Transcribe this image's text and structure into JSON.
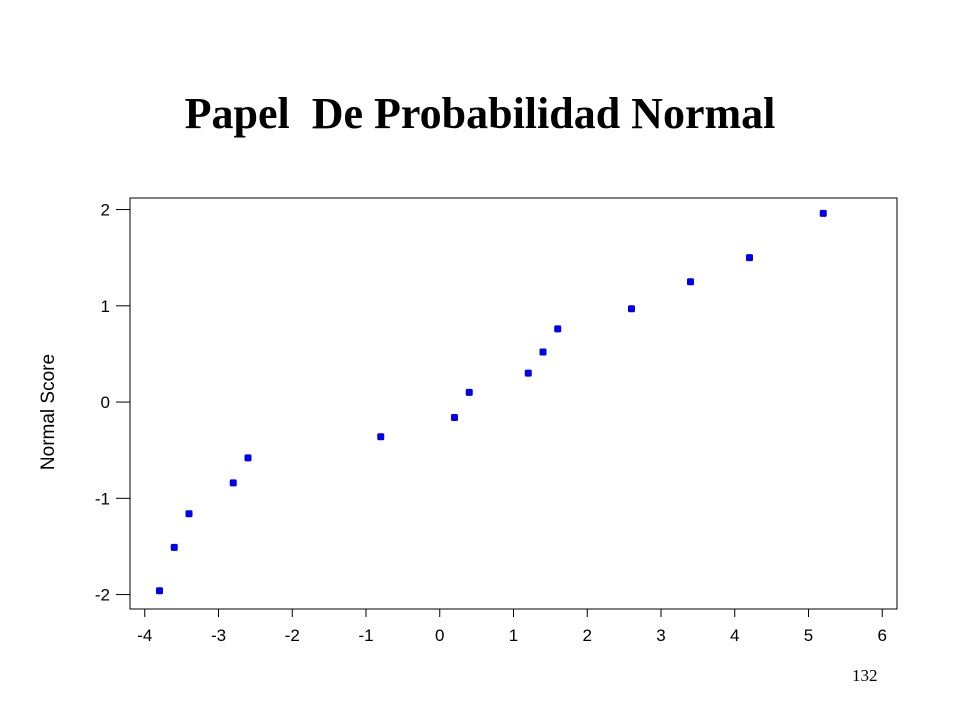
{
  "slide": {
    "title": "Papel  De Probabilidad Normal",
    "page_number": "132"
  },
  "chart_data": {
    "type": "scatter",
    "title": "",
    "xlabel": "",
    "ylabel": "Normal Score",
    "xlim": [
      -4.2,
      6.2
    ],
    "ylim": [
      -2.15,
      2.12
    ],
    "x_ticks": [
      -4,
      -3,
      -2,
      -1,
      0,
      1,
      2,
      3,
      4,
      5,
      6
    ],
    "y_ticks": [
      -2,
      -1,
      0,
      1,
      2
    ],
    "grid": false,
    "marker_color": "#0000ee",
    "points": [
      {
        "x": -3.8,
        "y": -1.96
      },
      {
        "x": -3.6,
        "y": -1.51
      },
      {
        "x": -3.4,
        "y": -1.16
      },
      {
        "x": -2.8,
        "y": -0.84
      },
      {
        "x": -2.6,
        "y": -0.58
      },
      {
        "x": -0.8,
        "y": -0.36
      },
      {
        "x": 0.2,
        "y": -0.16
      },
      {
        "x": 0.4,
        "y": 0.1
      },
      {
        "x": 1.2,
        "y": 0.3
      },
      {
        "x": 1.4,
        "y": 0.52
      },
      {
        "x": 1.6,
        "y": 0.76
      },
      {
        "x": 2.6,
        "y": 0.97
      },
      {
        "x": 3.4,
        "y": 1.25
      },
      {
        "x": 4.2,
        "y": 1.5
      },
      {
        "x": 5.2,
        "y": 1.96
      }
    ]
  }
}
